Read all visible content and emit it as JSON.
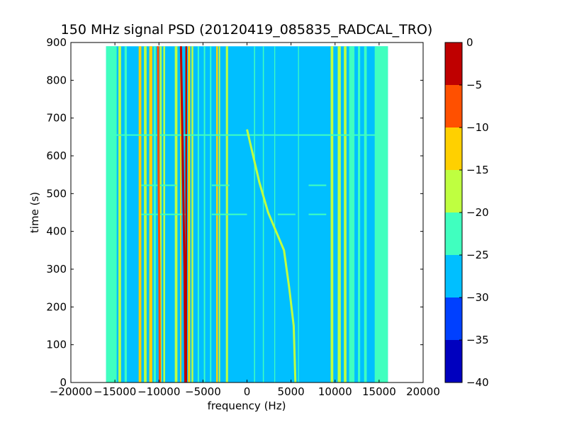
{
  "chart_data": {
    "type": "heatmap",
    "title": "150 MHz signal PSD (20120419_085835_RADCAL_TRO)",
    "xlabel": "frequency (Hz)",
    "ylabel": "time (s)",
    "xlim": [
      -20000,
      20000
    ],
    "ylim": [
      0,
      900
    ],
    "xticks": [
      -20000,
      -15000,
      -10000,
      -5000,
      0,
      5000,
      10000,
      15000,
      20000
    ],
    "xtick_labels": [
      "−20000",
      "−15000",
      "−10000",
      "−5000",
      "0",
      "5000",
      "10000",
      "15000",
      "20000"
    ],
    "yticks": [
      0,
      100,
      200,
      300,
      400,
      500,
      600,
      700,
      800,
      900
    ],
    "ytick_labels": [
      "0",
      "100",
      "200",
      "300",
      "400",
      "500",
      "600",
      "700",
      "800",
      "900"
    ],
    "data_extent": {
      "x": [
        -16000,
        16000
      ],
      "y": [
        0,
        890
      ]
    },
    "background_level": -27.5,
    "colorbar": {
      "levels": [
        -40,
        -35,
        -30,
        -25,
        -20,
        -15,
        -10,
        -5,
        0
      ],
      "tick_labels": [
        "−40",
        "−35",
        "−30",
        "−25",
        "−20",
        "−15",
        "−10",
        "−5",
        "0"
      ],
      "colors": [
        "#0000bf",
        "#0040ff",
        "#00bfff",
        "#40ffbf",
        "#bfff40",
        "#ffd000",
        "#ff5000",
        "#bf0000"
      ]
    },
    "vertical_lines": [
      {
        "x": -16000,
        "width": 1200,
        "level": -22.5
      },
      {
        "x": -14600,
        "width": 300,
        "level": -17.5
      },
      {
        "x": -13900,
        "width": 250,
        "level": -22.5
      },
      {
        "x": -12300,
        "width": 300,
        "level": -12.5
      },
      {
        "x": -11700,
        "width": 300,
        "level": -17.5
      },
      {
        "x": -11100,
        "width": 350,
        "level": -12.5
      },
      {
        "x": -10600,
        "width": 250,
        "level": -22.5
      },
      {
        "x": -9900,
        "width": 200,
        "level": -17.5
      },
      {
        "x": -9500,
        "width": 200,
        "level": -17.5
      },
      {
        "x": -8200,
        "width": 300,
        "level": -17.5
      },
      {
        "x": -7600,
        "width": 150,
        "level": -12.5
      },
      {
        "x": -7000,
        "width": 200,
        "level": -2.5
      },
      {
        "x": -6700,
        "width": 250,
        "level": -12.5
      },
      {
        "x": -6300,
        "width": 200,
        "level": -17.5
      },
      {
        "x": -5600,
        "width": 150,
        "level": -22.5
      },
      {
        "x": -4900,
        "width": 150,
        "level": -22.5
      },
      {
        "x": -4200,
        "width": 150,
        "level": -22.5
      },
      {
        "x": -3500,
        "width": 200,
        "level": -12.5
      },
      {
        "x": -3200,
        "width": 150,
        "level": -17.5
      },
      {
        "x": -2400,
        "width": 250,
        "level": -17.5
      },
      {
        "x": 800,
        "width": 120,
        "level": -22.5
      },
      {
        "x": 1800,
        "width": 120,
        "level": -22.5
      },
      {
        "x": 3100,
        "width": 100,
        "level": -22.5
      },
      {
        "x": 5800,
        "width": 100,
        "level": -22.5
      },
      {
        "x": 9500,
        "width": 300,
        "level": -17.5
      },
      {
        "x": 10300,
        "width": 350,
        "level": -17.5
      },
      {
        "x": 11000,
        "width": 300,
        "level": -17.5
      },
      {
        "x": 11600,
        "width": 600,
        "level": -22.5
      },
      {
        "x": 12600,
        "width": 250,
        "level": -22.5
      },
      {
        "x": 13300,
        "width": 300,
        "level": -22.5
      },
      {
        "x": 14500,
        "width": 1500,
        "level": -22.5
      }
    ],
    "drifting_lines": [
      {
        "level": -7.5,
        "points": [
          [
            -9900,
            0
          ],
          [
            -9950,
            300
          ],
          [
            -10050,
            600
          ],
          [
            -10100,
            890
          ]
        ]
      },
      {
        "level": -2.5,
        "points": [
          [
            -7000,
            0
          ],
          [
            -7100,
            300
          ],
          [
            -7300,
            600
          ],
          [
            -7500,
            890
          ]
        ]
      },
      {
        "level": -17.5,
        "level_note": "",
        "points": [
          [
            5500,
            0
          ],
          [
            5300,
            150
          ],
          [
            4800,
            250
          ],
          [
            4200,
            350
          ],
          [
            2400,
            450
          ],
          [
            1400,
            530
          ],
          [
            500,
            620
          ],
          [
            0,
            670
          ]
        ]
      }
    ],
    "horizontal_streaks": [
      {
        "y": 445,
        "segments": [
          [
            -12000,
            -7000
          ],
          [
            -4000,
            0
          ],
          [
            3500,
            5500
          ],
          [
            7000,
            9000
          ]
        ],
        "level": -22.5
      },
      {
        "y": 522,
        "segments": [
          [
            -12000,
            -8000
          ],
          [
            -4000,
            -2000
          ],
          [
            7000,
            9000
          ]
        ],
        "level": -22.5
      },
      {
        "y": 655,
        "segments": [
          [
            -15000,
            15000
          ]
        ],
        "level": -22.5
      }
    ]
  }
}
